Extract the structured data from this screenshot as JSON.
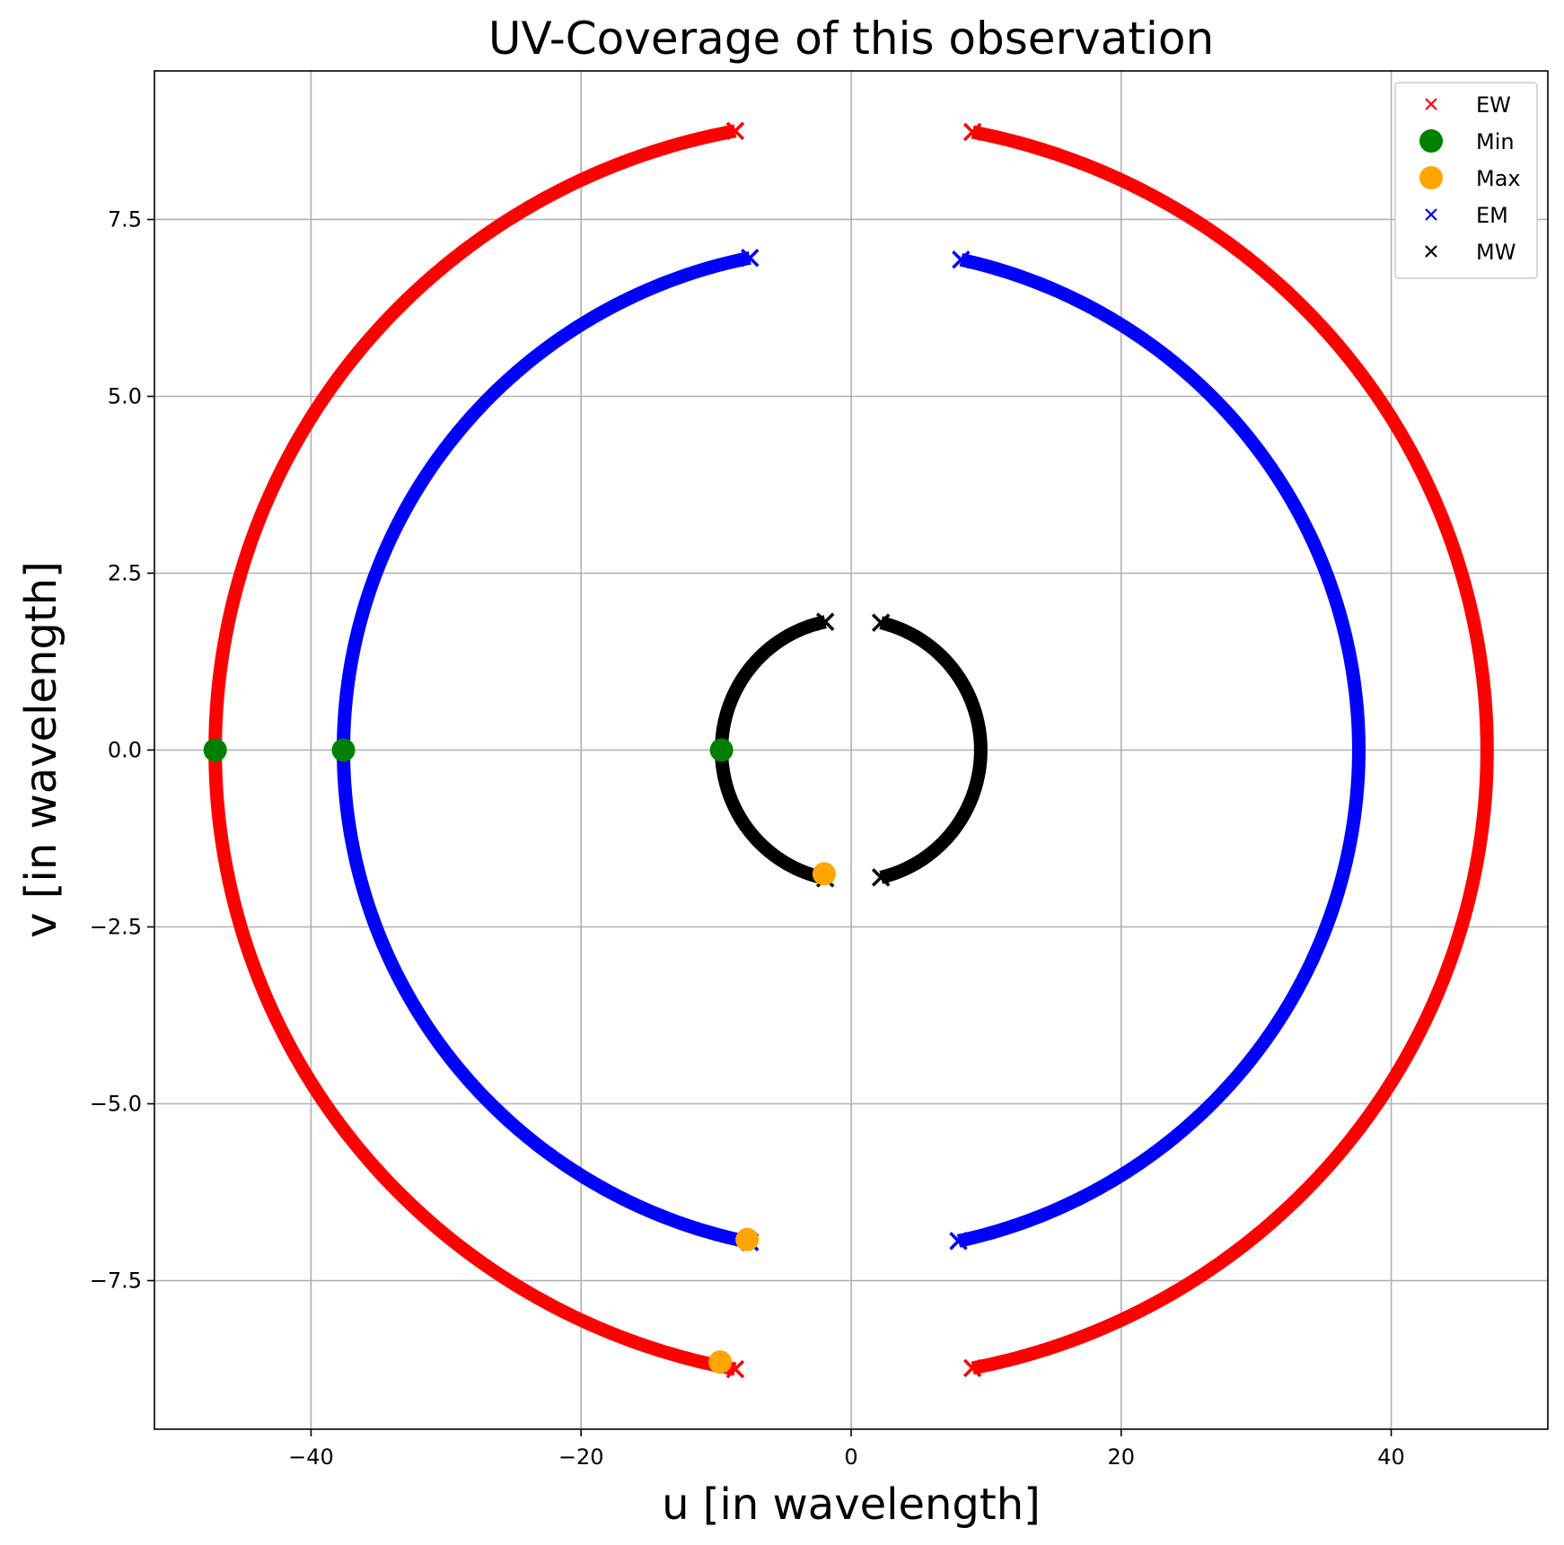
{
  "chart_data": {
    "type": "scatter",
    "title": "UV-Coverage of this observation",
    "xlabel": "u [in wavelength]",
    "ylabel": "v [in wavelength]",
    "xlim": [
      -51.6,
      51.6
    ],
    "ylim": [
      -9.6,
      9.6
    ],
    "xticks": [
      -40,
      -20,
      0,
      20,
      40
    ],
    "xtick_labels": [
      "−40",
      "−20",
      "0",
      "20",
      "40"
    ],
    "yticks": [
      -7.5,
      -5.0,
      -2.5,
      0.0,
      2.5,
      5.0,
      7.5
    ],
    "ytick_labels": [
      "−7.5",
      "−5.0",
      "−2.5",
      "0.0",
      "2.5",
      "5.0",
      "7.5"
    ],
    "grid": true,
    "legend_position": "top-right",
    "legend": [
      {
        "label": "EW",
        "marker": "x",
        "color": "#ff0000"
      },
      {
        "label": "Min",
        "marker": "circle",
        "color": "#008000"
      },
      {
        "label": "Max",
        "marker": "circle",
        "color": "#ffa500"
      },
      {
        "label": "EM",
        "marker": "x",
        "color": "#0000ff"
      },
      {
        "label": "MW",
        "marker": "x",
        "color": "#000000"
      }
    ],
    "series": [
      {
        "name": "EW",
        "marker": "x",
        "color": "#ff0000",
        "shape": "elliptical arcs centered at origin",
        "u_semi_axis": 47.1,
        "v_semi_axis": 8.9,
        "arcs_deg": [
          [
            100.5,
            259.5
          ],
          [
            -79,
            79
          ]
        ],
        "endpoints": {
          "left_top": [
            -9.5,
            8.7
          ],
          "left_bottom": [
            -9.7,
            -8.65
          ],
          "right_top": [
            9.7,
            8.65
          ],
          "right_bottom": [
            9.9,
            -8.75
          ]
        }
      },
      {
        "name": "EM",
        "marker": "x",
        "color": "#0000ff",
        "shape": "elliptical arcs centered at origin",
        "u_semi_axis": 37.6,
        "v_semi_axis": 7.1,
        "arcs_deg": [
          [
            101.5,
            258.5
          ],
          [
            -77.8,
            77.5
          ]
        ],
        "endpoints": {
          "left_top": [
            -7.5,
            7.0
          ],
          "left_bottom": [
            -7.7,
            -6.95
          ],
          "right_top": [
            7.7,
            6.9
          ],
          "right_bottom": [
            7.9,
            -7.0
          ]
        }
      },
      {
        "name": "MW",
        "marker": "x",
        "color": "#000000",
        "shape": "elliptical arcs centered at origin",
        "u_semi_axis": 9.6,
        "v_semi_axis": 1.85,
        "arcs_deg": [
          [
            101.5,
            258.5
          ],
          [
            -76.7,
            76.7
          ]
        ],
        "endpoints": {
          "left_top": [
            -2.0,
            1.8
          ],
          "left_bottom": [
            -2.0,
            -1.75
          ],
          "right_top": [
            2.2,
            1.75
          ],
          "right_bottom": [
            2.2,
            -1.8
          ]
        }
      }
    ],
    "points": {
      "Min": [
        [
          -47.1,
          0.0
        ],
        [
          -37.6,
          0.0
        ],
        [
          -9.6,
          0.0
        ]
      ],
      "Max": [
        [
          -9.7,
          -8.65
        ],
        [
          -7.7,
          -6.92
        ],
        [
          -2.0,
          -1.75
        ]
      ]
    }
  }
}
